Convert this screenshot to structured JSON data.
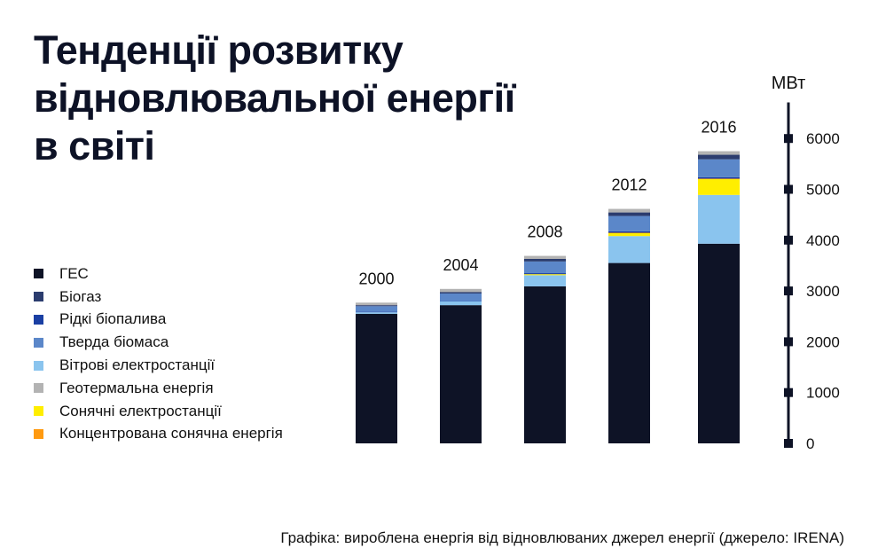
{
  "title": "Тенденції розвитку відновлювальної енергії в світі",
  "footer": "Графіка: вироблена енергія від відновлюваних джерел енергії (джерело: IRENA)",
  "colors": {
    "hydro": "#0e1326",
    "biogas": "#2b3c6e",
    "liquid_biofuels": "#1a3fa3",
    "solid_biomass": "#5b87c9",
    "wind": "#8ac4ee",
    "geothermal": "#b3b3b3",
    "solar_pv": "#ffee00",
    "csp": "#ff9a10",
    "axis": "#0e1326"
  },
  "legend": [
    {
      "label": "ГЕС",
      "color": "#0e1326"
    },
    {
      "label": "Біогаз",
      "color": "#2b3c6e"
    },
    {
      "label": "Рідкі біопалива",
      "color": "#1a3fa3"
    },
    {
      "label": "Тверда біомаса",
      "color": "#5b87c9"
    },
    {
      "label": "Вітрові електростанції",
      "color": "#8ac4ee"
    },
    {
      "label": "Геотермальна енергія",
      "color": "#b3b3b3"
    },
    {
      "label": "Сонячні електростанції",
      "color": "#ffee00"
    },
    {
      "label": "Концентрована сонячна енергія",
      "color": "#ff9a10"
    }
  ],
  "chart_data": {
    "type": "bar",
    "stacked": true,
    "title": "Тенденції розвитку відновлювальної енергії в світі",
    "ylabel": "МВт",
    "xlabel": "",
    "ylim": [
      0,
      6500
    ],
    "yticks": [
      0,
      1000,
      2000,
      3000,
      4000,
      5000,
      6000
    ],
    "axis_position": "right",
    "categories": [
      "2000",
      "2004",
      "2008",
      "2012",
      "2016"
    ],
    "series": [
      {
        "name": "ГЕС",
        "color": "#0e1326",
        "values": [
          2550,
          2720,
          3090,
          3550,
          3930
        ]
      },
      {
        "name": "Вітрові електростанції",
        "color": "#8ac4ee",
        "values": [
          30,
          80,
          220,
          530,
          960
        ]
      },
      {
        "name": "Сонячні електростанції",
        "color": "#ffee00",
        "values": [
          0,
          0,
          20,
          60,
          310
        ]
      },
      {
        "name": "Концентрована сонячна енергія",
        "color": "#ff9a10",
        "values": [
          0,
          0,
          0,
          5,
          10
        ]
      },
      {
        "name": "Рідкі біопалива",
        "color": "#1a3fa3",
        "values": [
          10,
          10,
          20,
          30,
          30
        ]
      },
      {
        "name": "Тверда біомаса",
        "color": "#5b87c9",
        "values": [
          110,
          140,
          230,
          300,
          350
        ]
      },
      {
        "name": "Біогаз",
        "color": "#2b3c6e",
        "values": [
          20,
          30,
          50,
          70,
          90
        ]
      },
      {
        "name": "Геотермальна енергія",
        "color": "#b3b3b3",
        "values": [
          50,
          60,
          60,
          70,
          70
        ]
      }
    ]
  }
}
